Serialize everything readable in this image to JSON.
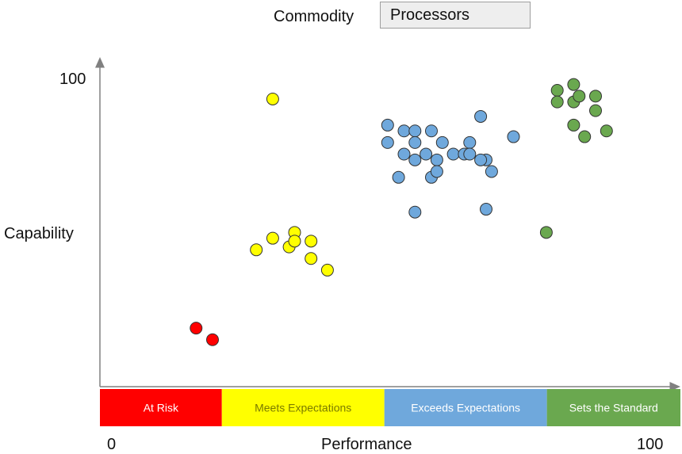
{
  "commodity": {
    "label": "Commodity",
    "value": "Processors"
  },
  "colors": {
    "at_risk": "#ff0000",
    "meets": "#ffff00",
    "exceeds": "#6fa8dc",
    "standard": "#6aa84f",
    "axis": "#808080"
  },
  "chart_data": {
    "type": "scatter",
    "title": "",
    "xlabel": "Performance",
    "ylabel": "Capability",
    "xlim": [
      0,
      100
    ],
    "ylim": [
      0,
      100
    ],
    "x_tick_labels": [
      "0",
      "100"
    ],
    "y_tick_labels": [
      "100"
    ],
    "grid": false,
    "bands": [
      {
        "label": "At Risk",
        "from": 0,
        "to": 21,
        "color": "#ff0000"
      },
      {
        "label": "Meets Expectations",
        "from": 21,
        "to": 49,
        "color": "#ffff00"
      },
      {
        "label": "Exceeds Expectations",
        "from": 49,
        "to": 77,
        "color": "#6fa8dc"
      },
      {
        "label": "Sets the Standard",
        "from": 77,
        "to": 100,
        "color": "#6aa84f"
      }
    ],
    "series": [
      {
        "color": "#ff0000",
        "points": [
          [
            17,
            18
          ],
          [
            20,
            14
          ]
        ]
      },
      {
        "color": "#ffff00",
        "points": [
          [
            31,
            97
          ],
          [
            28,
            45
          ],
          [
            31,
            49
          ],
          [
            34,
            46
          ],
          [
            35,
            51
          ],
          [
            35,
            48
          ],
          [
            38,
            48
          ],
          [
            38,
            42
          ],
          [
            41,
            38
          ]
        ]
      },
      {
        "color": "#6fa8dc",
        "points": [
          [
            52,
            88
          ],
          [
            55,
            86
          ],
          [
            57,
            86
          ],
          [
            60,
            86
          ],
          [
            52,
            82
          ],
          [
            57,
            82
          ],
          [
            62,
            82
          ],
          [
            67,
            82
          ],
          [
            55,
            78
          ],
          [
            59,
            78
          ],
          [
            64,
            78
          ],
          [
            66,
            78
          ],
          [
            67,
            78
          ],
          [
            57,
            76
          ],
          [
            61,
            76
          ],
          [
            70,
            76
          ],
          [
            69,
            76
          ],
          [
            54,
            70
          ],
          [
            60,
            70
          ],
          [
            61,
            72
          ],
          [
            71,
            72
          ],
          [
            69,
            91
          ],
          [
            75,
            84
          ],
          [
            57,
            58
          ],
          [
            70,
            59
          ]
        ]
      },
      {
        "color": "#6aa84f",
        "points": [
          [
            83,
            100
          ],
          [
            86,
            102
          ],
          [
            83,
            96
          ],
          [
            86,
            96
          ],
          [
            87,
            98
          ],
          [
            90,
            98
          ],
          [
            90,
            93
          ],
          [
            86,
            88
          ],
          [
            88,
            84
          ],
          [
            92,
            86
          ],
          [
            81,
            51
          ]
        ]
      }
    ]
  }
}
